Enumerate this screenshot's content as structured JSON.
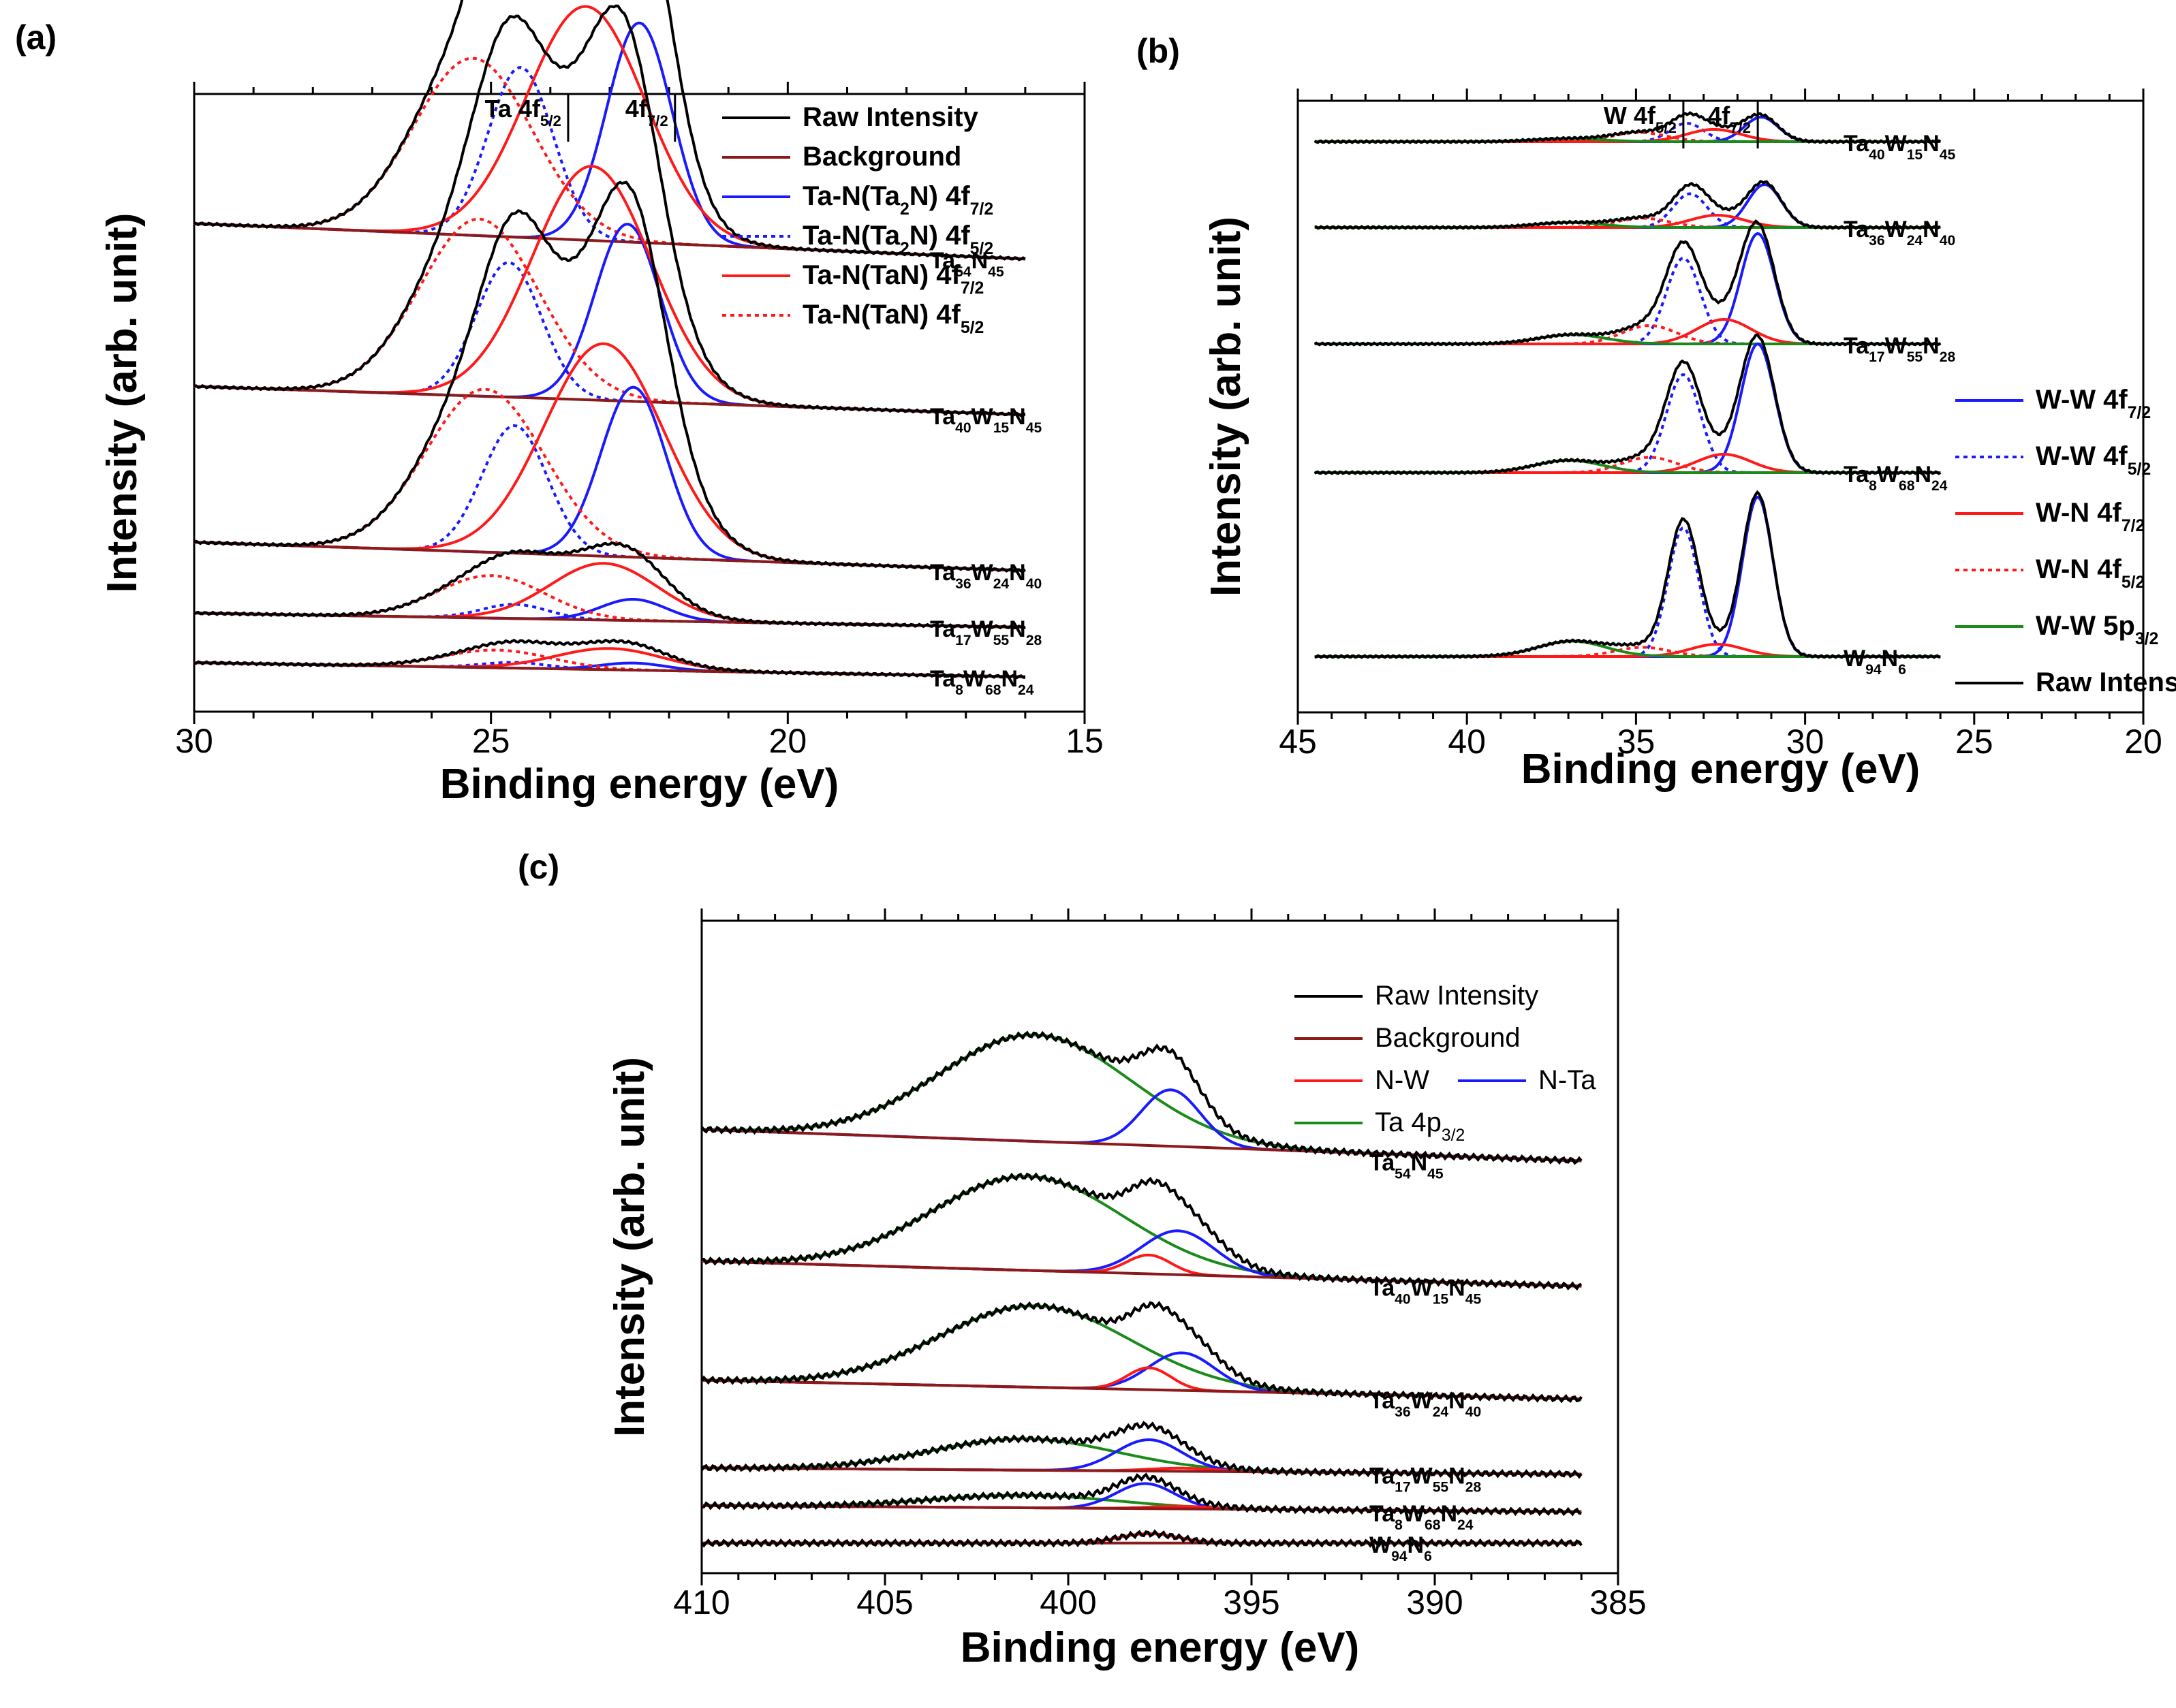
{
  "colors": {
    "raw": "#000000",
    "background": "#8b1a1a",
    "blue": "#1a1aff",
    "red": "#ff1a1a",
    "green": "#1a8a1a"
  },
  "panel_labels": [
    "(a)",
    "(b)",
    "(c)"
  ],
  "chart_data": [
    {
      "id": "a",
      "type": "line",
      "title": "(a)",
      "xlabel": "Binding energy (eV)",
      "ylabel": "Intensity (arb. unit)",
      "xlim": [
        30,
        15
      ],
      "xticks": [
        30,
        25,
        20,
        15
      ],
      "peak_labels": [
        {
          "text": "Ta 4f",
          "sub": "5/2",
          "x": 23.7
        },
        {
          "text": "4f",
          "sub": "7/2",
          "x": 21.9
        }
      ],
      "legend": [
        {
          "label": "Raw Intensity",
          "color": "raw",
          "dash": false
        },
        {
          "label": "Background",
          "color": "background",
          "dash": false
        },
        {
          "label": "Ta-N(Ta",
          "sub": "2",
          "label2": "N) 4f",
          "sub2": "7/2",
          "color": "blue",
          "dash": false
        },
        {
          "label": "Ta-N(Ta",
          "sub": "2",
          "label2": "N) 4f",
          "sub2": "5/2",
          "color": "blue",
          "dash": true
        },
        {
          "label": "Ta-N(TaN) 4f",
          "sub": "7/2",
          "color": "red",
          "dash": false
        },
        {
          "label": "Ta-N(TaN) 4f",
          "sub": "5/2",
          "color": "red",
          "dash": true
        }
      ],
      "series": [
        {
          "name": "Ta54N45",
          "parts": [
            [
              "Ta",
              "54"
            ],
            [
              "N",
              "45"
            ]
          ],
          "offset": 0.62,
          "peaks": [
            {
              "c": 22.5,
              "a": 0.31,
              "w": 0.55
            },
            {
              "c": 24.5,
              "a": 0.24,
              "w": 0.55
            },
            {
              "c": 23.4,
              "a": 0.33,
              "w": 1.0
            },
            {
              "c": 25.3,
              "a": 0.25,
              "w": 1.0
            }
          ],
          "bg": [
            0.05,
            0.0
          ]
        },
        {
          "name": "Ta40W15N45",
          "parts": [
            [
              "Ta",
              "40"
            ],
            [
              "W",
              "15"
            ],
            [
              "N",
              "45"
            ]
          ],
          "offset": 0.4,
          "peaks": [
            {
              "c": 22.7,
              "a": 0.25,
              "w": 0.55
            },
            {
              "c": 24.7,
              "a": 0.19,
              "w": 0.55
            },
            {
              "c": 23.3,
              "a": 0.33,
              "w": 1.0
            },
            {
              "c": 25.2,
              "a": 0.25,
              "w": 1.0
            }
          ],
          "bg": [
            0.04,
            0.0
          ]
        },
        {
          "name": "Ta36W24N40",
          "parts": [
            [
              "Ta",
              "36"
            ],
            [
              "W",
              "24"
            ],
            [
              "N",
              "40"
            ]
          ],
          "offset": 0.18,
          "peaks": [
            {
              "c": 22.6,
              "a": 0.24,
              "w": 0.55
            },
            {
              "c": 24.6,
              "a": 0.18,
              "w": 0.55
            },
            {
              "c": 23.1,
              "a": 0.3,
              "w": 1.0
            },
            {
              "c": 25.1,
              "a": 0.23,
              "w": 1.0
            }
          ],
          "bg": [
            0.04,
            0.0
          ]
        },
        {
          "name": "Ta17W55N28",
          "parts": [
            [
              "Ta",
              "17"
            ],
            [
              "W",
              "55"
            ],
            [
              "N",
              "28"
            ]
          ],
          "offset": 0.1,
          "peaks": [
            {
              "c": 22.6,
              "a": 0.03,
              "w": 0.55
            },
            {
              "c": 24.6,
              "a": 0.02,
              "w": 0.55
            },
            {
              "c": 23.1,
              "a": 0.08,
              "w": 0.9
            },
            {
              "c": 25.0,
              "a": 0.06,
              "w": 0.9
            }
          ],
          "bg": [
            0.02,
            0.0
          ]
        },
        {
          "name": "Ta8W68N24",
          "parts": [
            [
              "Ta",
              "8"
            ],
            [
              "W",
              "68"
            ],
            [
              "N",
              "24"
            ]
          ],
          "offset": 0.03,
          "peaks": [
            {
              "c": 22.6,
              "a": 0.01,
              "w": 0.55
            },
            {
              "c": 24.6,
              "a": 0.008,
              "w": 0.55
            },
            {
              "c": 23.0,
              "a": 0.03,
              "w": 0.9
            },
            {
              "c": 24.9,
              "a": 0.025,
              "w": 0.9
            }
          ],
          "bg": [
            0.02,
            0.0
          ]
        }
      ]
    },
    {
      "id": "b",
      "type": "line",
      "title": "(b)",
      "xlabel": "Binding energy (eV)",
      "ylabel": "Intensity (arb. unit)",
      "xlim": [
        45,
        20
      ],
      "xticks": [
        45,
        40,
        35,
        30,
        25,
        20
      ],
      "peak_labels": [
        {
          "text": "W 4f",
          "sub": "5/2",
          "x": 33.6
        },
        {
          "text": "4f",
          "sub": "7/2",
          "x": 31.4
        }
      ],
      "legend": [
        {
          "label": "W-W 4f",
          "sub": "7/2",
          "color": "blue",
          "dash": false
        },
        {
          "label": "W-W 4f",
          "sub": "5/2",
          "color": "blue",
          "dash": true
        },
        {
          "label": "W-N 4f",
          "sub": "7/2",
          "color": "red",
          "dash": false
        },
        {
          "label": "W-N 4f",
          "sub": "5/2",
          "color": "red",
          "dash": true
        },
        {
          "label": "W-W 5p",
          "sub": "3/2",
          "color": "green",
          "dash": false
        },
        {
          "label": "Raw Intensity",
          "color": "raw",
          "dash": false
        }
      ],
      "series": [
        {
          "name": "Ta40W15N45",
          "parts": [
            [
              "Ta",
              "40"
            ],
            [
              "W",
              "15"
            ],
            [
              "N",
              "45"
            ]
          ],
          "offset": 0.88,
          "peaks": [
            {
              "c": 31.3,
              "a": 0.04,
              "w": 0.5
            },
            {
              "c": 33.5,
              "a": 0.03,
              "w": 0.5
            },
            {
              "c": 32.7,
              "a": 0.02,
              "w": 0.8
            },
            {
              "c": 34.9,
              "a": 0.015,
              "w": 0.8
            },
            {
              "c": 37.0,
              "a": 0.005,
              "w": 1.0
            }
          ]
        },
        {
          "name": "Ta36W24N40",
          "parts": [
            [
              "Ta",
              "36"
            ],
            [
              "W",
              "24"
            ],
            [
              "N",
              "40"
            ]
          ],
          "offset": 0.74,
          "peaks": [
            {
              "c": 31.2,
              "a": 0.07,
              "w": 0.5
            },
            {
              "c": 33.4,
              "a": 0.055,
              "w": 0.5
            },
            {
              "c": 32.6,
              "a": 0.02,
              "w": 0.8
            },
            {
              "c": 34.8,
              "a": 0.015,
              "w": 0.8
            },
            {
              "c": 37.0,
              "a": 0.008,
              "w": 1.0
            }
          ]
        },
        {
          "name": "Ta17W55N28",
          "parts": [
            [
              "Ta",
              "17"
            ],
            [
              "W",
              "55"
            ],
            [
              "N",
              "28"
            ]
          ],
          "offset": 0.55,
          "peaks": [
            {
              "c": 31.4,
              "a": 0.18,
              "w": 0.5
            },
            {
              "c": 33.6,
              "a": 0.14,
              "w": 0.5
            },
            {
              "c": 32.4,
              "a": 0.04,
              "w": 0.8
            },
            {
              "c": 34.6,
              "a": 0.03,
              "w": 0.8
            },
            {
              "c": 36.9,
              "a": 0.015,
              "w": 1.0
            }
          ]
        },
        {
          "name": "Ta8W68N24",
          "parts": [
            [
              "Ta",
              "8"
            ],
            [
              "W",
              "68"
            ],
            [
              "N",
              "24"
            ]
          ],
          "offset": 0.34,
          "peaks": [
            {
              "c": 31.4,
              "a": 0.21,
              "w": 0.5
            },
            {
              "c": 33.6,
              "a": 0.16,
              "w": 0.5
            },
            {
              "c": 32.4,
              "a": 0.03,
              "w": 0.8
            },
            {
              "c": 34.6,
              "a": 0.025,
              "w": 0.8
            },
            {
              "c": 37.0,
              "a": 0.02,
              "w": 1.0
            }
          ]
        },
        {
          "name": "W94N6",
          "parts": [
            [
              "W",
              "94"
            ],
            [
              "N",
              "6"
            ]
          ],
          "offset": 0.04,
          "peaks": [
            {
              "c": 31.4,
              "a": 0.26,
              "w": 0.45
            },
            {
              "c": 33.6,
              "a": 0.21,
              "w": 0.45
            },
            {
              "c": 32.6,
              "a": 0.02,
              "w": 0.8
            },
            {
              "c": 34.8,
              "a": 0.015,
              "w": 0.8
            },
            {
              "c": 36.9,
              "a": 0.025,
              "w": 1.0
            }
          ]
        }
      ]
    },
    {
      "id": "c",
      "type": "line",
      "title": "(c)",
      "xlabel": "Binding energy (eV)",
      "ylabel": "Intensity (arb. unit)",
      "xlim": [
        410,
        385
      ],
      "xticks": [
        410,
        405,
        400,
        395,
        390,
        385
      ],
      "legend": [
        {
          "label": "Raw Intensity",
          "color": "raw",
          "dash": false
        },
        {
          "label": "Background",
          "color": "background",
          "dash": false
        },
        {
          "label": "N-W",
          "color": "red",
          "dash": false
        },
        {
          "label": "N-Ta",
          "color": "blue",
          "dash": false
        },
        {
          "label": "Ta 4p",
          "sub": "3/2",
          "color": "green",
          "dash": false
        }
      ],
      "series": [
        {
          "name": "Ta54N45",
          "parts": [
            [
              "Ta",
              "54"
            ],
            [
              "N",
              "45"
            ]
          ],
          "offset": 0.62,
          "peaks": [
            {
              "c": 400.9,
              "a": 0.17,
              "w": 2.6
            },
            {
              "c": 397.2,
              "a": 0.09,
              "w": 0.8
            }
          ],
          "bg": [
            0.05,
            0.0
          ]
        },
        {
          "name": "Ta40W15N45",
          "parts": [
            [
              "Ta",
              "40"
            ],
            [
              "W",
              "15"
            ],
            [
              "N",
              "45"
            ]
          ],
          "offset": 0.42,
          "peaks": [
            {
              "c": 401.1,
              "a": 0.15,
              "w": 2.6
            },
            {
              "c": 397.0,
              "a": 0.07,
              "w": 1.0
            },
            {
              "c": 397.8,
              "a": 0.03,
              "w": 0.6
            }
          ],
          "bg": [
            0.04,
            0.0
          ]
        },
        {
          "name": "Ta36W24N40",
          "parts": [
            [
              "Ta",
              "36"
            ],
            [
              "W",
              "24"
            ],
            [
              "N",
              "40"
            ]
          ],
          "offset": 0.24,
          "peaks": [
            {
              "c": 400.9,
              "a": 0.13,
              "w": 2.6
            },
            {
              "c": 396.9,
              "a": 0.06,
              "w": 0.9
            },
            {
              "c": 397.8,
              "a": 0.035,
              "w": 0.6
            }
          ],
          "bg": [
            0.03,
            0.0
          ]
        },
        {
          "name": "Ta17W55N28",
          "parts": [
            [
              "Ta",
              "17"
            ],
            [
              "W",
              "55"
            ],
            [
              "N",
              "28"
            ]
          ],
          "offset": 0.12,
          "peaks": [
            {
              "c": 401.2,
              "a": 0.05,
              "w": 2.5
            },
            {
              "c": 397.8,
              "a": 0.05,
              "w": 0.9
            },
            {
              "c": 396.9,
              "a": 0.005,
              "w": 0.9
            }
          ],
          "bg": [
            0.01,
            0.0
          ]
        },
        {
          "name": "Ta8W68N24",
          "parts": [
            [
              "Ta",
              "8"
            ],
            [
              "W",
              "68"
            ],
            [
              "N",
              "24"
            ]
          ],
          "offset": 0.06,
          "peaks": [
            {
              "c": 401.2,
              "a": 0.02,
              "w": 2.5
            },
            {
              "c": 397.9,
              "a": 0.04,
              "w": 0.8
            },
            {
              "c": 396.9,
              "a": 0.004,
              "w": 0.9
            }
          ],
          "bg": [
            0.01,
            0.0
          ]
        },
        {
          "name": "W94N6",
          "parts": [
            [
              "W",
              "94"
            ],
            [
              "N",
              "6"
            ]
          ],
          "offset": 0.01,
          "peaks": [
            {
              "c": 397.8,
              "a": 0.015,
              "w": 0.8
            }
          ],
          "bg": [
            0.0,
            0.0
          ]
        }
      ]
    }
  ]
}
